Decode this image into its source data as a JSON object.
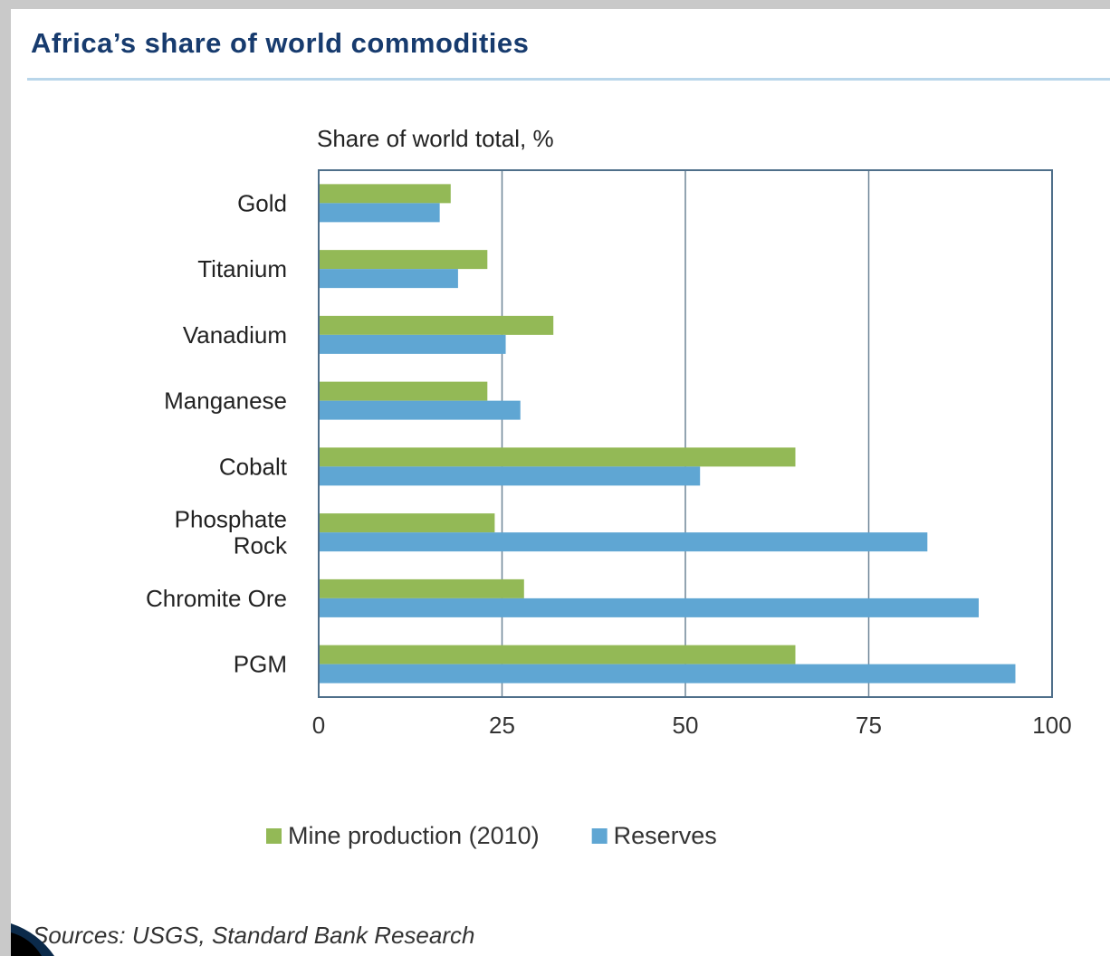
{
  "page": {
    "title": "Africa’s share of world commodities",
    "source": "Sources: USGS, Standard Bank Research"
  },
  "chart_data": {
    "type": "bar",
    "orientation": "horizontal",
    "subtitle": "Share of world total, %",
    "categories": [
      "Gold",
      "Titanium",
      "Vanadium",
      "Manganese",
      "Cobalt",
      "Phosphate Rock",
      "Chromite Ore",
      "PGM"
    ],
    "series": [
      {
        "name": "Mine production (2010)",
        "color": "#93b956",
        "values": [
          18,
          23,
          32,
          23,
          65,
          24,
          28,
          65
        ]
      },
      {
        "name": "Reserves",
        "color": "#5fa6d3",
        "values": [
          16.5,
          19,
          25.5,
          27.5,
          52,
          83,
          90,
          95
        ]
      }
    ],
    "xlim": [
      0,
      100
    ],
    "xticks": [
      0,
      25,
      50,
      75,
      100
    ],
    "grid": true,
    "legend": "bottom"
  }
}
